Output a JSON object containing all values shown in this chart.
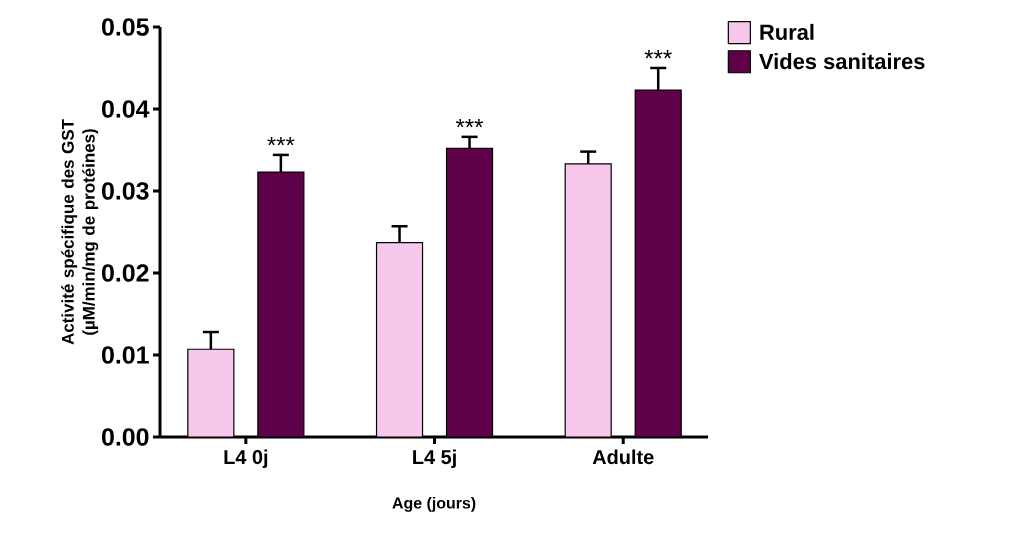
{
  "chart_data": {
    "type": "bar",
    "xlabel": "Age (jours)",
    "ylabel": "Activité spécifique des GST (µM/min/mg de protéines)",
    "categories": [
      "L4 0j",
      "L4 5j",
      "Adulte"
    ],
    "series": [
      {
        "name": "Rural",
        "color": "#f7c8ec",
        "values": [
          0.0107,
          0.0237,
          0.0333
        ],
        "errors": [
          0.0021,
          0.002,
          0.0015
        ]
      },
      {
        "name": "Vides sanitaires",
        "color": "#5e004a",
        "values": [
          0.0323,
          0.0352,
          0.0423
        ],
        "errors": [
          0.0021,
          0.0014,
          0.0027
        ]
      }
    ],
    "ylim": [
      0,
      0.05
    ],
    "yticks": [
      {
        "value": 0,
        "label": "0.00"
      },
      0.01,
      0.02,
      0.03,
      0.04,
      0.05
    ],
    "annotations": [
      "***",
      "***",
      "***"
    ],
    "legend": "top right",
    "grid": false
  }
}
